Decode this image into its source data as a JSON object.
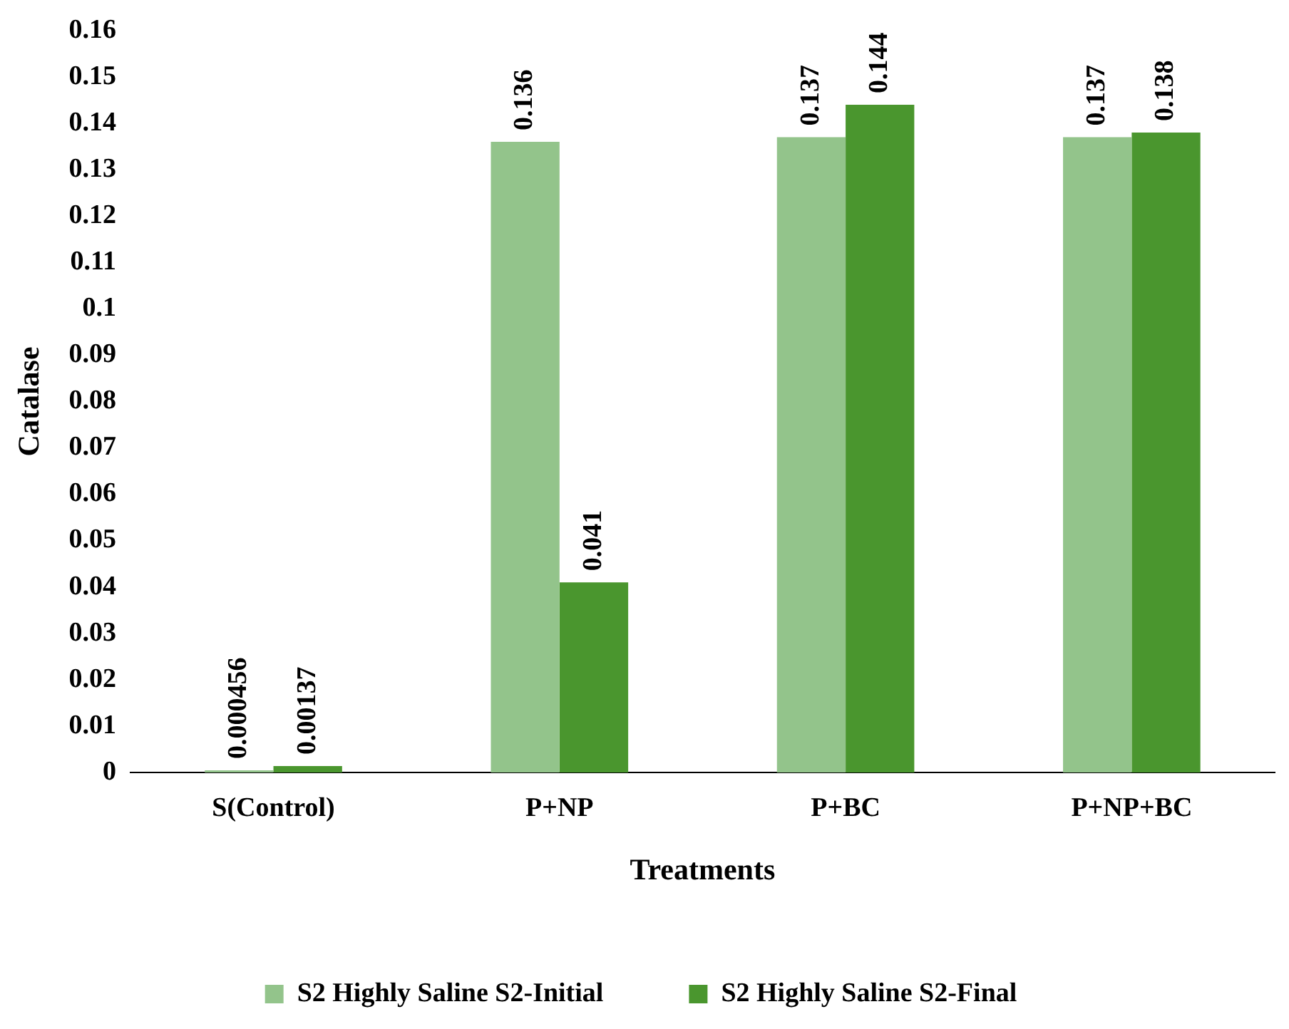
{
  "chart_data": {
    "type": "bar",
    "xlabel": "Treatments",
    "ylabel": "Catalase",
    "categories": [
      "S(Control)",
      "P+NP",
      "P+BC",
      "P+NP+BC"
    ],
    "series": [
      {
        "name": "S2 Highly Saline S2-Initial",
        "color": "#93c48b",
        "values": [
          0.000456,
          0.136,
          0.137,
          0.137
        ]
      },
      {
        "name": "S2 Highly Saline S2-Final",
        "color": "#4a962e",
        "values": [
          0.00137,
          0.041,
          0.144,
          0.138
        ]
      }
    ],
    "ylim": [
      0,
      0.16
    ],
    "yticks": [
      0,
      0.01,
      0.02,
      0.03,
      0.04,
      0.05,
      0.06,
      0.07,
      0.08,
      0.09,
      0.1,
      0.11,
      0.12,
      0.13,
      0.14,
      0.15,
      0.16
    ],
    "grid": false,
    "legend": "bottom",
    "data_labels": true
  }
}
